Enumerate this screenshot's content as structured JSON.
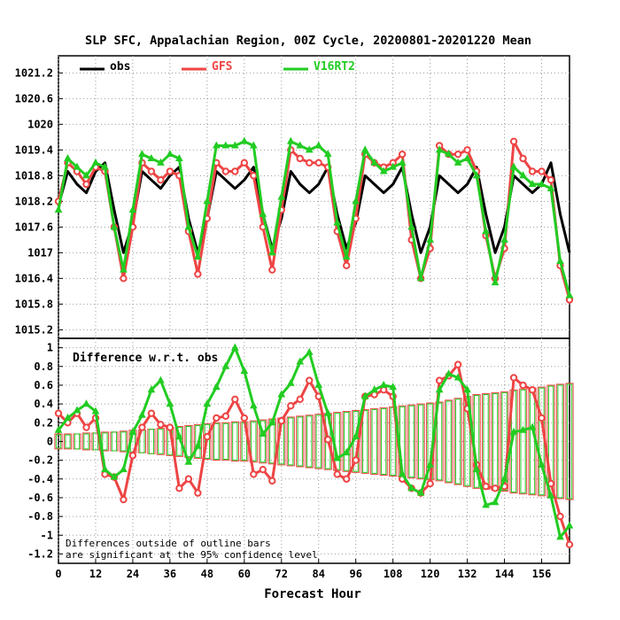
{
  "chart_data": {
    "type": "line",
    "title": "SLP SFC, Appalachian Region, 00Z Cycle, 20200801-20201220 Mean",
    "xlabel": "Forecast Hour",
    "x": [
      0,
      3,
      6,
      9,
      12,
      15,
      18,
      21,
      24,
      27,
      30,
      33,
      36,
      39,
      42,
      45,
      48,
      51,
      54,
      57,
      60,
      63,
      66,
      69,
      72,
      75,
      78,
      81,
      84,
      87,
      90,
      93,
      96,
      99,
      102,
      105,
      108,
      111,
      114,
      117,
      120,
      123,
      126,
      129,
      132,
      135,
      138,
      141,
      144,
      147,
      150,
      153,
      156,
      159,
      162,
      165
    ],
    "xticks": [
      0,
      12,
      24,
      36,
      48,
      60,
      72,
      84,
      96,
      108,
      120,
      132,
      144,
      156
    ],
    "xlim": [
      0,
      165
    ],
    "top_panel": {
      "ylim": [
        1015.0,
        1021.6
      ],
      "yticks": [
        "1015.2",
        "1015.8",
        "1016.4",
        "1017",
        "1017.6",
        "1018.2",
        "1018.8",
        "1019.4",
        "1020",
        "1020.6",
        "1021.2"
      ],
      "legend": [
        {
          "name": "obs",
          "color": "#000000"
        },
        {
          "name": "GFS",
          "color": "#ee4444"
        },
        {
          "name": "V16RT2",
          "color": "#22cc22"
        }
      ],
      "series": [
        {
          "name": "obs",
          "color": "#000000",
          "marker": "none",
          "values": [
            1018.1,
            1018.9,
            1018.6,
            1018.4,
            1018.9,
            1019.1,
            1018.0,
            1017.0,
            1017.7,
            1018.9,
            1018.7,
            1018.5,
            1018.8,
            1019.0,
            1017.8,
            1017.0,
            1017.8,
            1018.9,
            1018.7,
            1018.5,
            1018.7,
            1019.0,
            1017.9,
            1017.1,
            1017.8,
            1018.9,
            1018.6,
            1018.4,
            1018.6,
            1019.0,
            1017.9,
            1017.1,
            1017.7,
            1018.8,
            1018.6,
            1018.4,
            1018.6,
            1019.0,
            1017.9,
            1017.0,
            1017.6,
            1018.8,
            1018.6,
            1018.4,
            1018.6,
            1019.0,
            1017.9,
            1017.0,
            1017.6,
            1018.8,
            1018.6,
            1018.4,
            1018.6,
            1019.1,
            1017.9,
            1017.0
          ]
        },
        {
          "name": "GFS",
          "color": "#ee4444",
          "marker": "circle",
          "values": [
            1018.2,
            1019.1,
            1018.9,
            1018.6,
            1019.0,
            1018.9,
            1017.6,
            1016.4,
            1017.6,
            1019.1,
            1018.9,
            1018.7,
            1018.9,
            1018.8,
            1017.5,
            1016.5,
            1017.8,
            1019.1,
            1018.9,
            1018.9,
            1019.1,
            1018.8,
            1017.6,
            1016.6,
            1018.0,
            1019.4,
            1019.2,
            1019.1,
            1019.1,
            1019.0,
            1017.5,
            1016.7,
            1017.8,
            1019.3,
            1019.1,
            1019.0,
            1019.1,
            1019.3,
            1017.3,
            1016.4,
            1017.1,
            1019.5,
            1019.3,
            1019.3,
            1019.4,
            1018.9,
            1017.4,
            1016.4,
            1017.1,
            1019.6,
            1019.2,
            1018.9,
            1018.9,
            1018.7,
            1016.7,
            1015.9
          ]
        },
        {
          "name": "V16RT2",
          "color": "#22cc22",
          "marker": "triangle",
          "values": [
            1018.0,
            1019.2,
            1019.0,
            1018.8,
            1019.1,
            1019.0,
            1017.6,
            1016.6,
            1018.0,
            1019.3,
            1019.2,
            1019.1,
            1019.3,
            1019.2,
            1017.6,
            1016.9,
            1018.2,
            1019.5,
            1019.5,
            1019.5,
            1019.6,
            1019.5,
            1017.9,
            1017.0,
            1018.3,
            1019.6,
            1019.5,
            1019.4,
            1019.5,
            1019.3,
            1017.7,
            1016.9,
            1018.2,
            1019.4,
            1019.1,
            1018.9,
            1019.0,
            1019.1,
            1017.6,
            1016.4,
            1017.3,
            1019.4,
            1019.3,
            1019.1,
            1019.2,
            1018.8,
            1017.5,
            1016.3,
            1017.3,
            1019.0,
            1018.8,
            1018.6,
            1018.6,
            1018.5,
            1016.8,
            1016.0
          ]
        }
      ]
    },
    "bottom_panel": {
      "label": "Difference w.r.t. obs",
      "ylim": [
        -1.3,
        1.1
      ],
      "yticks": [
        "-1.2",
        "-1",
        "-0.8",
        "-0.6",
        "-0.4",
        "-0.2",
        "0",
        "0.2",
        "0.4",
        "0.6",
        "0.8",
        "1"
      ],
      "note_line1": "Differences outside of outline bars",
      "note_line2": "are significant at the 95% confidence level",
      "series": [
        {
          "name": "GFS",
          "color": "#ee4444",
          "marker": "circle",
          "values": [
            0.3,
            0.2,
            0.3,
            0.15,
            0.25,
            -0.35,
            -0.38,
            -0.62,
            -0.15,
            0.15,
            0.3,
            0.18,
            0.15,
            -0.5,
            -0.4,
            -0.55,
            0.05,
            0.25,
            0.27,
            0.45,
            0.25,
            -0.35,
            -0.3,
            -0.42,
            0.22,
            0.38,
            0.45,
            0.65,
            0.48,
            0.02,
            -0.35,
            -0.4,
            -0.2,
            0.48,
            0.5,
            0.55,
            0.48,
            -0.4,
            -0.5,
            -0.55,
            -0.45,
            0.65,
            0.7,
            0.82,
            0.35,
            -0.25,
            -0.48,
            -0.5,
            -0.48,
            0.68,
            0.6,
            0.55,
            0.25,
            -0.45,
            -0.8,
            -1.1
          ]
        },
        {
          "name": "V16RT2",
          "color": "#22cc22",
          "marker": "triangle",
          "values": [
            0.12,
            0.25,
            0.33,
            0.4,
            0.32,
            -0.3,
            -0.38,
            -0.3,
            0.1,
            0.28,
            0.55,
            0.65,
            0.4,
            0.05,
            -0.22,
            -0.05,
            0.4,
            0.58,
            0.8,
            1.0,
            0.75,
            0.38,
            0.08,
            0.2,
            0.5,
            0.62,
            0.85,
            0.95,
            0.6,
            0.3,
            -0.18,
            -0.12,
            0.05,
            0.48,
            0.55,
            0.6,
            0.58,
            -0.35,
            -0.5,
            -0.55,
            -0.25,
            0.55,
            0.72,
            0.68,
            0.55,
            -0.3,
            -0.68,
            -0.65,
            -0.4,
            0.1,
            0.12,
            0.15,
            -0.25,
            -0.58,
            -1.02,
            -0.9
          ]
        }
      ],
      "bars_gfs_half": [
        0.08,
        0.08,
        0.08,
        0.09,
        0.09,
        0.1,
        0.1,
        0.11,
        0.12,
        0.12,
        0.13,
        0.14,
        0.15,
        0.16,
        0.17,
        0.18,
        0.19,
        0.2,
        0.2,
        0.21,
        0.21,
        0.22,
        0.23,
        0.24,
        0.25,
        0.26,
        0.27,
        0.28,
        0.29,
        0.3,
        0.31,
        0.32,
        0.33,
        0.34,
        0.35,
        0.36,
        0.37,
        0.38,
        0.39,
        0.4,
        0.41,
        0.42,
        0.44,
        0.46,
        0.48,
        0.5,
        0.51,
        0.52,
        0.53,
        0.55,
        0.56,
        0.57,
        0.58,
        0.6,
        0.61,
        0.62
      ],
      "bars_v16_half": [
        0.07,
        0.07,
        0.08,
        0.08,
        0.09,
        0.09,
        0.1,
        0.1,
        0.11,
        0.12,
        0.13,
        0.13,
        0.14,
        0.15,
        0.16,
        0.17,
        0.18,
        0.19,
        0.19,
        0.2,
        0.2,
        0.21,
        0.22,
        0.23,
        0.24,
        0.25,
        0.26,
        0.27,
        0.28,
        0.29,
        0.3,
        0.31,
        0.32,
        0.33,
        0.34,
        0.35,
        0.36,
        0.37,
        0.38,
        0.39,
        0.4,
        0.41,
        0.43,
        0.45,
        0.47,
        0.49,
        0.5,
        0.51,
        0.52,
        0.54,
        0.55,
        0.56,
        0.57,
        0.59,
        0.6,
        0.61
      ]
    }
  }
}
